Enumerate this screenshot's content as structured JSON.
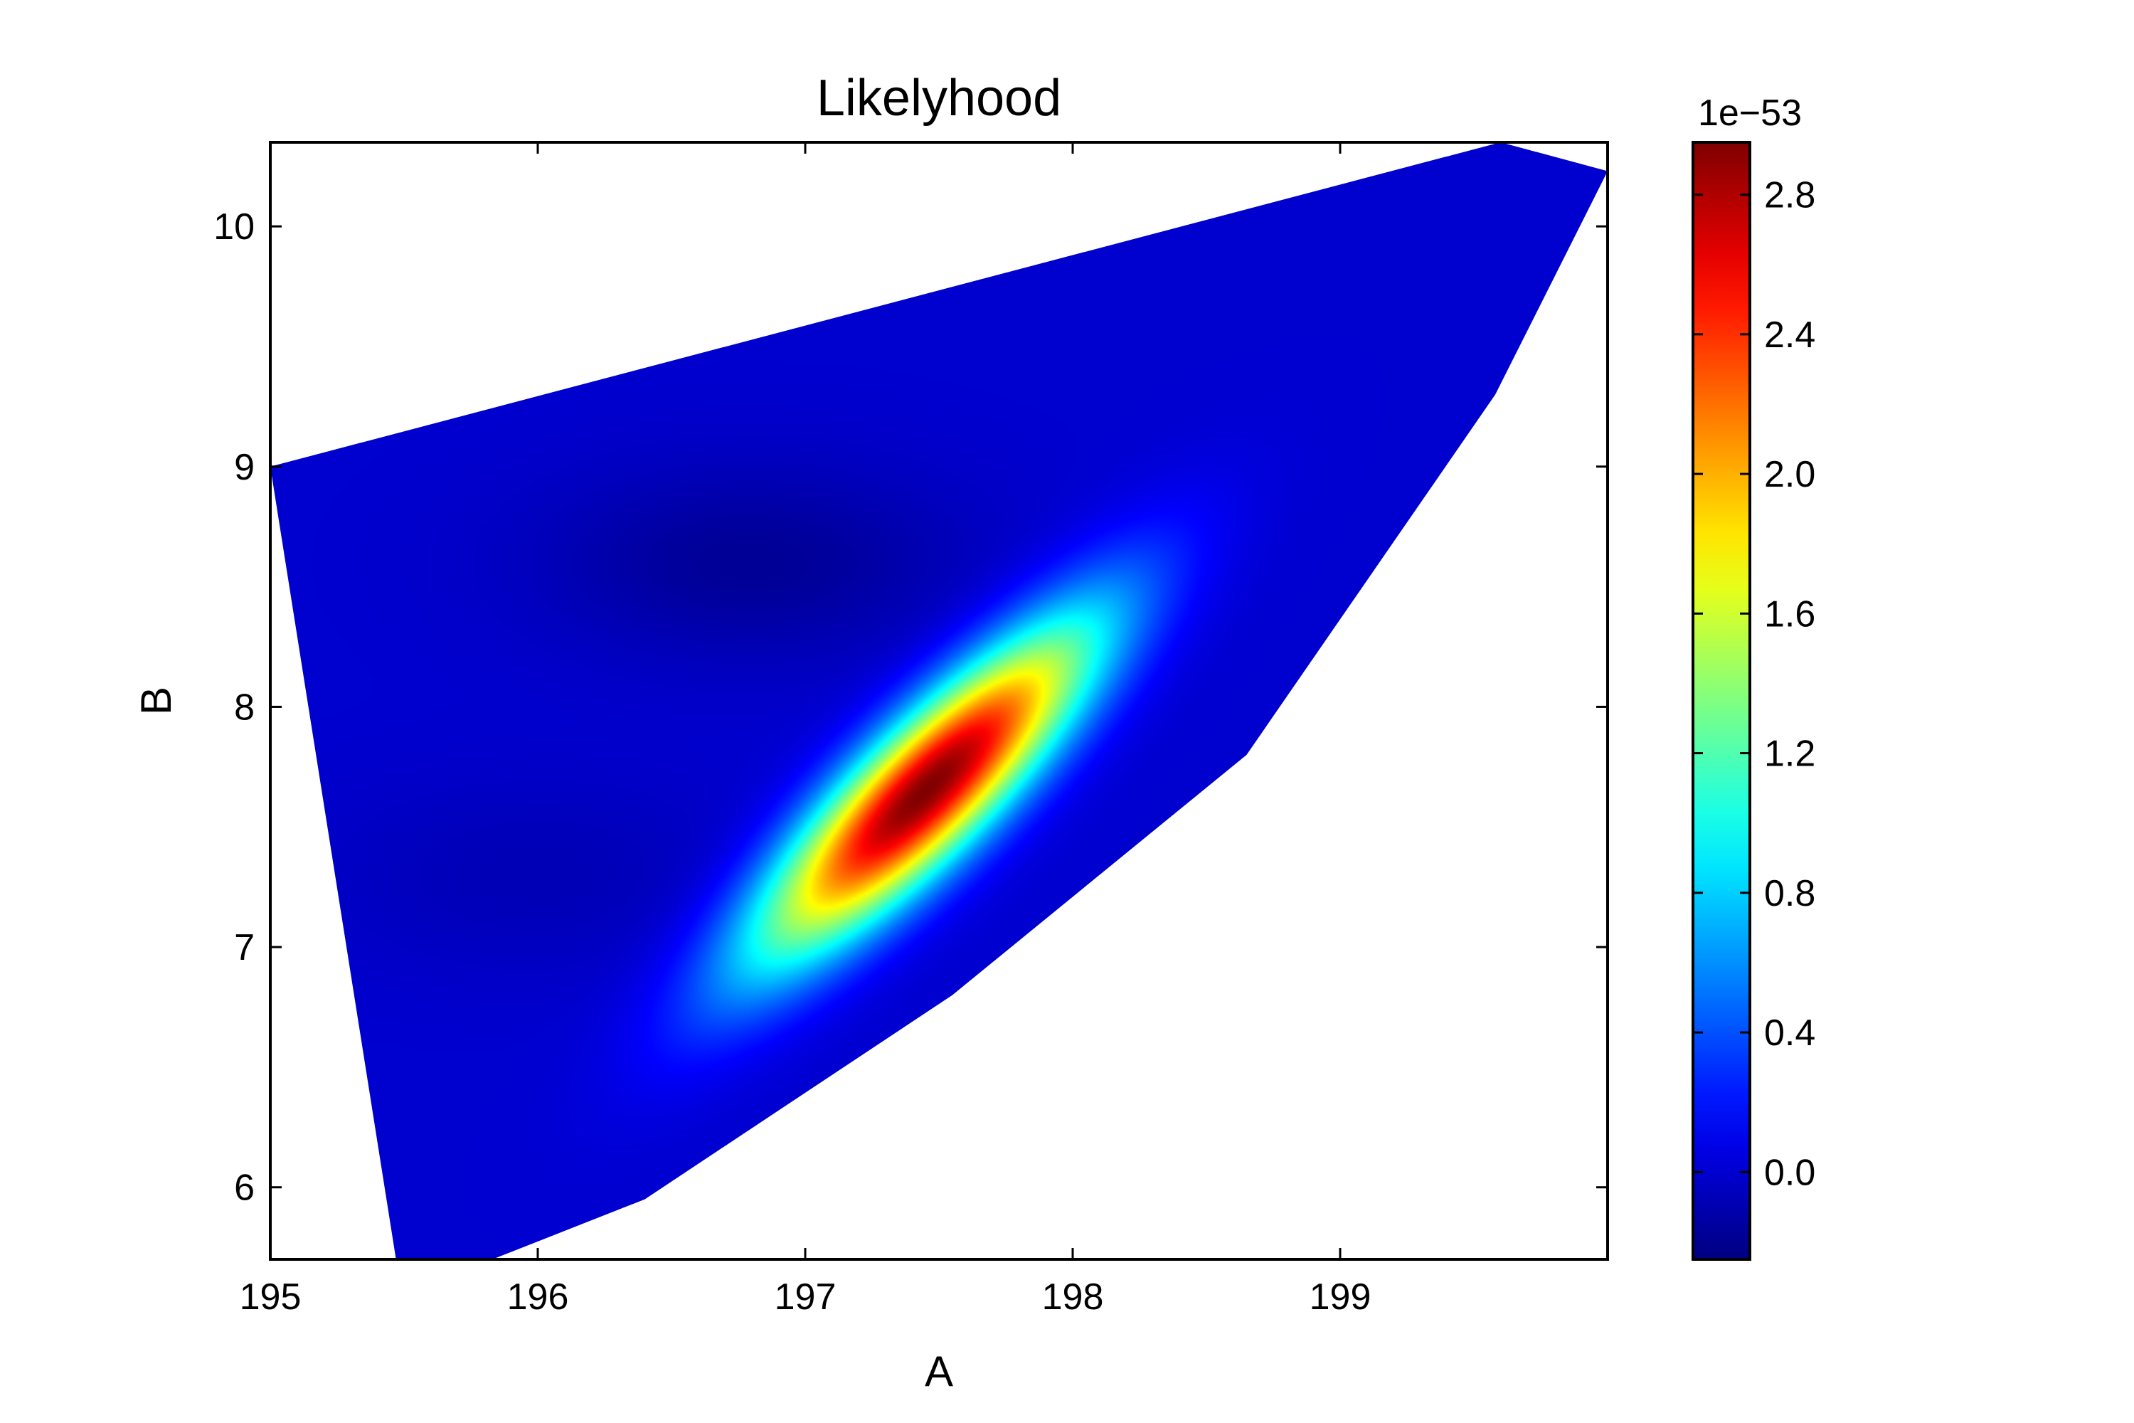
{
  "chart_data": {
    "type": "heatmap",
    "title": "Likelyhood",
    "xlabel": "A",
    "ylabel": "B",
    "xlim": [
      195,
      200
    ],
    "ylim": [
      5.7,
      10.35
    ],
    "x_ticks": [
      195,
      196,
      197,
      198,
      199
    ],
    "y_ticks": [
      6,
      7,
      8,
      9,
      10
    ],
    "x_tick_labels": [
      "195",
      "196",
      "197",
      "198",
      "199"
    ],
    "y_tick_labels": [
      "6",
      "7",
      "8",
      "9",
      "10"
    ],
    "colorbar": {
      "colormap": "jet",
      "range": [
        -0.25,
        2.95
      ],
      "ticks": [
        0.0,
        0.4,
        0.8,
        1.2,
        1.6,
        2.0,
        2.4,
        2.8
      ],
      "tick_labels": [
        "0.0",
        "0.4",
        "0.8",
        "1.2",
        "1.6",
        "2.0",
        "2.4",
        "2.8"
      ],
      "offset_label": "1e−53"
    },
    "peak": {
      "A": 197.45,
      "B": 7.65,
      "value": 2.95
    },
    "baseline_value": 0.0,
    "data_region_polygon": [
      [
        195.0,
        9.0
      ],
      [
        199.6,
        10.35
      ],
      [
        200.0,
        10.23
      ],
      [
        199.58,
        9.3
      ],
      [
        198.65,
        7.8
      ],
      [
        197.55,
        6.8
      ],
      [
        196.4,
        5.95
      ],
      [
        195.83,
        5.7
      ],
      [
        195.47,
        5.7
      ]
    ],
    "low_regions": [
      {
        "A": 196.8,
        "B": 8.6,
        "value": -0.18
      },
      {
        "A": 196.0,
        "B": 7.3,
        "value": -0.08
      }
    ]
  }
}
